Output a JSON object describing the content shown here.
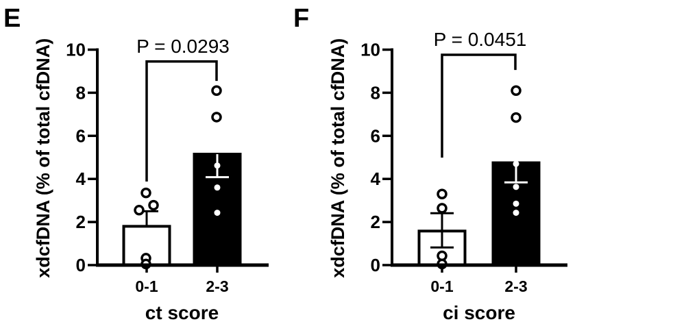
{
  "figure": {
    "background": "#ffffff",
    "ink": "#000000",
    "description_labels": {
      "panel_e": "E",
      "panel_f": "F"
    }
  },
  "chart_data": [
    {
      "type": "bar",
      "panel_label": "E",
      "title": "",
      "xlabel": "ct score",
      "ylabel": "xdcfDNA (% of total cfDNA)",
      "ylim": [
        0,
        10
      ],
      "yticks": [
        0,
        2,
        4,
        6,
        8,
        10
      ],
      "grid": false,
      "legend": null,
      "categories": [
        "0-1",
        "2-3"
      ],
      "series": [
        {
          "category": "0-1",
          "bar_fill": "#ffffff",
          "mean": 1.8,
          "err_upper": 2.5,
          "err_lower": null,
          "points": [
            {
              "value": 3.35,
              "dx": -1,
              "style": "open"
            },
            {
              "value": 2.78,
              "dx": 10,
              "style": "open"
            },
            {
              "value": 2.55,
              "dx": -11,
              "style": "open"
            },
            {
              "value": 0.32,
              "dx": -1,
              "style": "open"
            },
            {
              "value": 0.05,
              "dx": -1,
              "style": "open"
            }
          ]
        },
        {
          "category": "2-3",
          "bar_fill": "#000000",
          "mean": 5.15,
          "err_upper": null,
          "err_lower": 4.08,
          "points": [
            {
              "value": 8.1,
              "dx": -1,
              "style": "open"
            },
            {
              "value": 6.87,
              "dx": -1,
              "style": "open"
            },
            {
              "value": 4.62,
              "dx": 0,
              "style": "dot"
            },
            {
              "value": 3.6,
              "dx": 0,
              "style": "dot"
            },
            {
              "value": 2.43,
              "dx": 0,
              "style": "dot"
            }
          ]
        }
      ],
      "significance": {
        "label": "P = 0.0293",
        "bar_value": 9.45,
        "left_end_value": 3.88,
        "right_end_value": 8.55
      }
    },
    {
      "type": "bar",
      "panel_label": "F",
      "title": "",
      "xlabel": "ci score",
      "ylabel": "xdcfDNA (% of total cfDNA)",
      "ylim": [
        0,
        10
      ],
      "yticks": [
        0,
        2,
        4,
        6,
        8,
        10
      ],
      "grid": false,
      "legend": null,
      "categories": [
        "0-1",
        "2-3"
      ],
      "series": [
        {
          "category": "0-1",
          "bar_fill": "#ffffff",
          "mean": 1.58,
          "err_upper": 2.41,
          "err_lower": 0.82,
          "points": [
            {
              "value": 3.3,
              "dx": 0,
              "style": "open"
            },
            {
              "value": 2.64,
              "dx": 0,
              "style": "open"
            },
            {
              "value": 0.43,
              "dx": 0,
              "style": "open"
            },
            {
              "value": 0.05,
              "dx": 0,
              "style": "open"
            }
          ]
        },
        {
          "category": "2-3",
          "bar_fill": "#000000",
          "mean": 4.75,
          "err_upper": null,
          "err_lower": 3.84,
          "points": [
            {
              "value": 8.1,
              "dx": 0,
              "style": "open"
            },
            {
              "value": 6.85,
              "dx": 0,
              "style": "open"
            },
            {
              "value": 4.7,
              "dx": 0,
              "style": "dot"
            },
            {
              "value": 3.63,
              "dx": 0,
              "style": "dot"
            },
            {
              "value": 2.85,
              "dx": 0,
              "style": "dot"
            },
            {
              "value": 2.43,
              "dx": 0,
              "style": "dot"
            }
          ]
        }
      ],
      "significance": {
        "label": "P = 0.0451",
        "bar_value": 9.76,
        "left_end_value": 4.99,
        "right_end_value": 9.06
      }
    }
  ]
}
